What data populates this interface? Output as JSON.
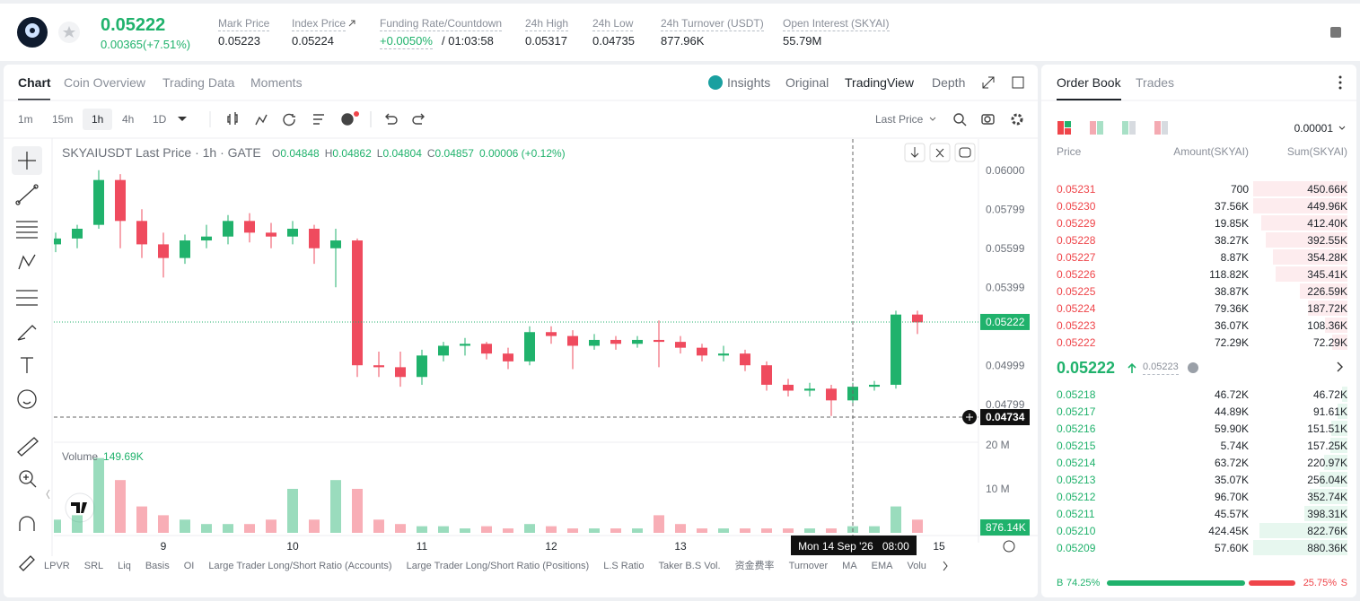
{
  "header": {
    "price": "0.05222",
    "change": "0.00365(+7.51%)",
    "stats": [
      {
        "label": "Mark Price",
        "value": "0.05223"
      },
      {
        "label": "Index Price",
        "value": "0.05224"
      },
      {
        "label": "Funding Rate/Countdown",
        "value": "+0.0050%",
        "countdown": "/ 01:03:58"
      },
      {
        "label": "24h High",
        "value": "0.05317"
      },
      {
        "label": "24h Low",
        "value": "0.04735"
      },
      {
        "label": "24h Turnover (USDT)",
        "value": "877.96K"
      },
      {
        "label": "Open Interest (SKYAI)",
        "value": "55.79M"
      }
    ]
  },
  "chart_tabs": [
    "Chart",
    "Coin Overview",
    "Trading Data",
    "Moments"
  ],
  "view_tabs": [
    "Insights",
    "Original",
    "TradingView",
    "Depth"
  ],
  "intervals": [
    "1m",
    "15m",
    "1h",
    "4h",
    "1D"
  ],
  "price_type": "Last Price",
  "chart_data": {
    "type": "candlestick",
    "symbol": "SKYAIUSDT Last Price · 1h · GATE",
    "ohlc": [
      {
        "key": "O",
        "value": "0.04848"
      },
      {
        "key": "H",
        "value": "0.04862"
      },
      {
        "key": "L",
        "value": "0.04804"
      },
      {
        "key": "C",
        "value": "0.04857"
      }
    ],
    "change": "0.00006 (+0.12%)",
    "up_color": "#20b26c",
    "down_color": "#ef4b5e",
    "candles": [
      [
        0.0562,
        0.0568,
        0.0558,
        0.0565
      ],
      [
        0.0565,
        0.0572,
        0.056,
        0.057
      ],
      [
        0.0572,
        0.06,
        0.057,
        0.0595
      ],
      [
        0.0595,
        0.0598,
        0.056,
        0.0574
      ],
      [
        0.0574,
        0.058,
        0.0555,
        0.0562
      ],
      [
        0.0562,
        0.0568,
        0.0545,
        0.0555
      ],
      [
        0.0555,
        0.0567,
        0.0552,
        0.0564
      ],
      [
        0.0564,
        0.0572,
        0.056,
        0.0566
      ],
      [
        0.0566,
        0.0577,
        0.0562,
        0.0574
      ],
      [
        0.0574,
        0.0578,
        0.0563,
        0.0568
      ],
      [
        0.0568,
        0.0573,
        0.056,
        0.0566
      ],
      [
        0.0566,
        0.0574,
        0.0562,
        0.057
      ],
      [
        0.057,
        0.0572,
        0.0552,
        0.056
      ],
      [
        0.056,
        0.057,
        0.054,
        0.0564
      ],
      [
        0.0564,
        0.0565,
        0.0494,
        0.05
      ],
      [
        0.05,
        0.0507,
        0.0494,
        0.0499
      ],
      [
        0.0499,
        0.0507,
        0.0489,
        0.0494
      ],
      [
        0.0494,
        0.0508,
        0.049,
        0.0505
      ],
      [
        0.0505,
        0.0512,
        0.0502,
        0.051
      ],
      [
        0.051,
        0.0514,
        0.0505,
        0.0511
      ],
      [
        0.0511,
        0.0512,
        0.0503,
        0.0506
      ],
      [
        0.0506,
        0.0509,
        0.0498,
        0.0502
      ],
      [
        0.0502,
        0.052,
        0.05,
        0.0517
      ],
      [
        0.0517,
        0.052,
        0.0511,
        0.0515
      ],
      [
        0.0515,
        0.0518,
        0.0498,
        0.051
      ],
      [
        0.051,
        0.0516,
        0.0508,
        0.0513
      ],
      [
        0.0513,
        0.0515,
        0.0508,
        0.0511
      ],
      [
        0.0511,
        0.0515,
        0.0509,
        0.0513
      ],
      [
        0.0513,
        0.0523,
        0.0499,
        0.0512
      ],
      [
        0.0512,
        0.0515,
        0.0506,
        0.0509
      ],
      [
        0.0509,
        0.0511,
        0.0502,
        0.0505
      ],
      [
        0.0505,
        0.051,
        0.0502,
        0.0506
      ],
      [
        0.0506,
        0.0508,
        0.0497,
        0.05
      ],
      [
        0.05,
        0.0502,
        0.0487,
        0.049
      ],
      [
        0.049,
        0.0493,
        0.0484,
        0.0487
      ],
      [
        0.0487,
        0.0491,
        0.0484,
        0.0488
      ],
      [
        0.0488,
        0.049,
        0.0474,
        0.0482
      ],
      [
        0.0482,
        0.0491,
        0.0479,
        0.0489
      ],
      [
        0.0489,
        0.0492,
        0.0487,
        0.049
      ],
      [
        0.049,
        0.0528,
        0.0488,
        0.0526
      ],
      [
        0.0526,
        0.0528,
        0.0516,
        0.0522
      ]
    ],
    "ylim": [
      0.0461,
      0.0616
    ],
    "yticks": [
      {
        "value": 0.06,
        "label": "0.06000"
      },
      {
        "value": 0.05799,
        "label": "0.05799"
      },
      {
        "value": 0.05599,
        "label": "0.05599"
      },
      {
        "value": 0.05399,
        "label": "0.05399"
      },
      {
        "value": 0.04999,
        "label": "0.04999"
      },
      {
        "value": 0.04799,
        "label": "0.04799"
      }
    ],
    "grid": false,
    "current_price": {
      "value": 0.05222,
      "label": "0.05222"
    },
    "crosshair_price": {
      "value": 0.04734,
      "label": "0.04734"
    },
    "crosshair_time": "Mon 14 Sep '26   08:00",
    "xticks": [
      "9",
      "10",
      "11",
      "12",
      "13",
      "15"
    ],
    "volume_title": "Volume",
    "volume_value": "149.69K",
    "volumes": [
      3000000,
      4000000,
      17000000,
      12000000,
      6000000,
      4000000,
      3000000,
      2000000,
      2000000,
      2000000,
      3000000,
      10000000,
      3000000,
      12000000,
      10000000,
      3000000,
      2000000,
      1500000,
      1500000,
      1000000,
      1500000,
      1000000,
      2000000,
      1500000,
      1000000,
      1000000,
      1000000,
      1000000,
      4000000,
      2000000,
      1000000,
      1000000,
      1000000,
      1000000,
      1000000,
      1000000,
      1000000,
      1500000,
      1500000,
      6000000,
      3000000
    ],
    "vlim": [
      0,
      20400000
    ],
    "vticks": [
      {
        "value": 10000000,
        "label": "10 M"
      },
      {
        "value": 20000000,
        "label": "20 M"
      }
    ],
    "volume_last": "876.14K"
  },
  "indicators": [
    "LPVR",
    "SRL",
    "Liq",
    "Basis",
    "OI",
    "Large Trader Long/Short Ratio (Accounts)",
    "Large Trader Long/Short Ratio (Positions)",
    "L.S Ratio",
    "Taker B.S Vol.",
    "资金费率",
    "Turnover",
    "MA",
    "EMA",
    "Volu"
  ],
  "order_book": {
    "tabs": [
      "Order Book",
      "Trades"
    ],
    "precision": "0.00001",
    "columns": [
      "Price",
      "Amount(SKYAI)",
      "Sum(SKYAI)"
    ],
    "asks": [
      [
        "0.05231",
        "700",
        "450.66K"
      ],
      [
        "0.05230",
        "37.56K",
        "449.96K"
      ],
      [
        "0.05229",
        "19.85K",
        "412.40K"
      ],
      [
        "0.05228",
        "38.27K",
        "392.55K"
      ],
      [
        "0.05227",
        "8.87K",
        "354.28K"
      ],
      [
        "0.05226",
        "118.82K",
        "345.41K"
      ],
      [
        "0.05225",
        "38.87K",
        "226.59K"
      ],
      [
        "0.05224",
        "79.36K",
        "187.72K"
      ],
      [
        "0.05223",
        "36.07K",
        "108.36K"
      ],
      [
        "0.05222",
        "72.29K",
        "72.29K"
      ]
    ],
    "mid_price": "0.05222",
    "mark_price": "0.05223",
    "bids": [
      [
        "0.05218",
        "46.72K",
        "46.72K"
      ],
      [
        "0.05217",
        "44.89K",
        "91.61K"
      ],
      [
        "0.05216",
        "59.90K",
        "151.51K"
      ],
      [
        "0.05215",
        "5.74K",
        "157.25K"
      ],
      [
        "0.05214",
        "63.72K",
        "220.97K"
      ],
      [
        "0.05213",
        "35.07K",
        "256.04K"
      ],
      [
        "0.05212",
        "96.70K",
        "352.74K"
      ],
      [
        "0.05211",
        "45.57K",
        "398.31K"
      ],
      [
        "0.05210",
        "424.45K",
        "822.76K"
      ],
      [
        "0.05209",
        "57.60K",
        "880.36K"
      ]
    ],
    "buy_label": "B",
    "buy_ratio": "74.25%",
    "sell_ratio": "25.75%",
    "sell_label": "S"
  }
}
